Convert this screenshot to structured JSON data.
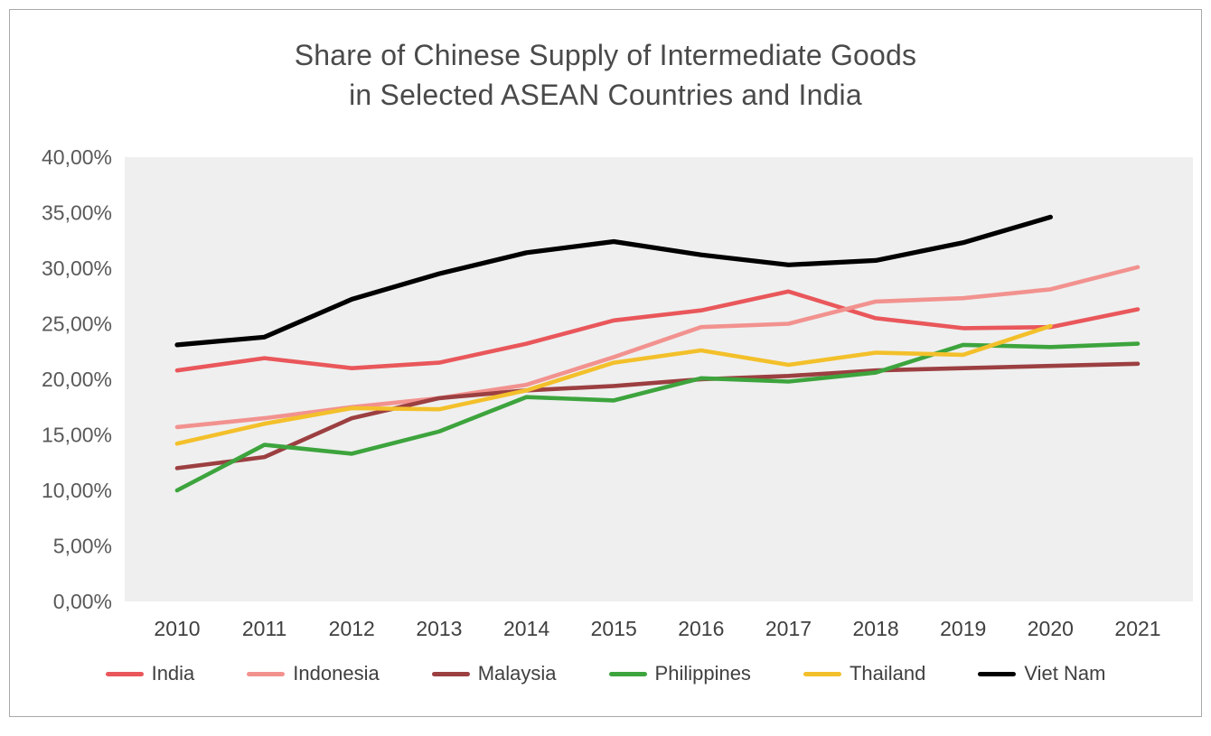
{
  "figure": {
    "title_line1": "Share of Chinese Supply of Intermediate Goods",
    "title_line2": "in Selected ASEAN Countries and India"
  },
  "chart_data": {
    "type": "line",
    "title": "Share of Chinese Supply of Intermediate Goods in Selected ASEAN Countries and India",
    "x": [
      2010,
      2011,
      2012,
      2013,
      2014,
      2015,
      2016,
      2017,
      2018,
      2019,
      2020,
      2021
    ],
    "y_ticks": [
      "40,00%",
      "35,00%",
      "30,00%",
      "25,00%",
      "20,00%",
      "15,00%",
      "10,00%",
      "5,00%",
      "0,00%"
    ],
    "ylim": [
      0,
      40
    ],
    "grid": false,
    "plot_background": "#efefef",
    "legend_position": "bottom",
    "series": [
      {
        "name": "India",
        "color": "#e9575b",
        "values": [
          20.8,
          21.9,
          21.0,
          21.5,
          23.2,
          25.3,
          26.2,
          27.9,
          25.5,
          24.6,
          24.7,
          26.3
        ]
      },
      {
        "name": "Indonesia",
        "color": "#f2928f",
        "values": [
          15.7,
          16.5,
          17.5,
          18.3,
          19.5,
          22.0,
          24.7,
          25.0,
          27.0,
          27.3,
          28.1,
          30.1
        ]
      },
      {
        "name": "Malaysia",
        "color": "#9c3f41",
        "values": [
          12.0,
          13.0,
          16.5,
          18.3,
          19.0,
          19.4,
          20.0,
          20.3,
          20.8,
          21.0,
          21.2,
          21.4
        ]
      },
      {
        "name": "Philippines",
        "color": "#3da43d",
        "values": [
          10.0,
          14.1,
          13.3,
          15.3,
          18.4,
          18.1,
          20.1,
          19.8,
          20.6,
          23.1,
          22.9,
          23.2
        ]
      },
      {
        "name": "Thailand",
        "color": "#f3c02b",
        "values": [
          14.2,
          16.0,
          17.4,
          17.3,
          19.0,
          21.5,
          22.6,
          21.3,
          22.4,
          22.2,
          24.8,
          null
        ]
      },
      {
        "name": "Viet Nam",
        "color": "#000000",
        "values": [
          23.1,
          23.8,
          27.2,
          29.5,
          31.4,
          32.4,
          31.2,
          30.3,
          30.7,
          32.3,
          34.6,
          null
        ]
      }
    ]
  }
}
